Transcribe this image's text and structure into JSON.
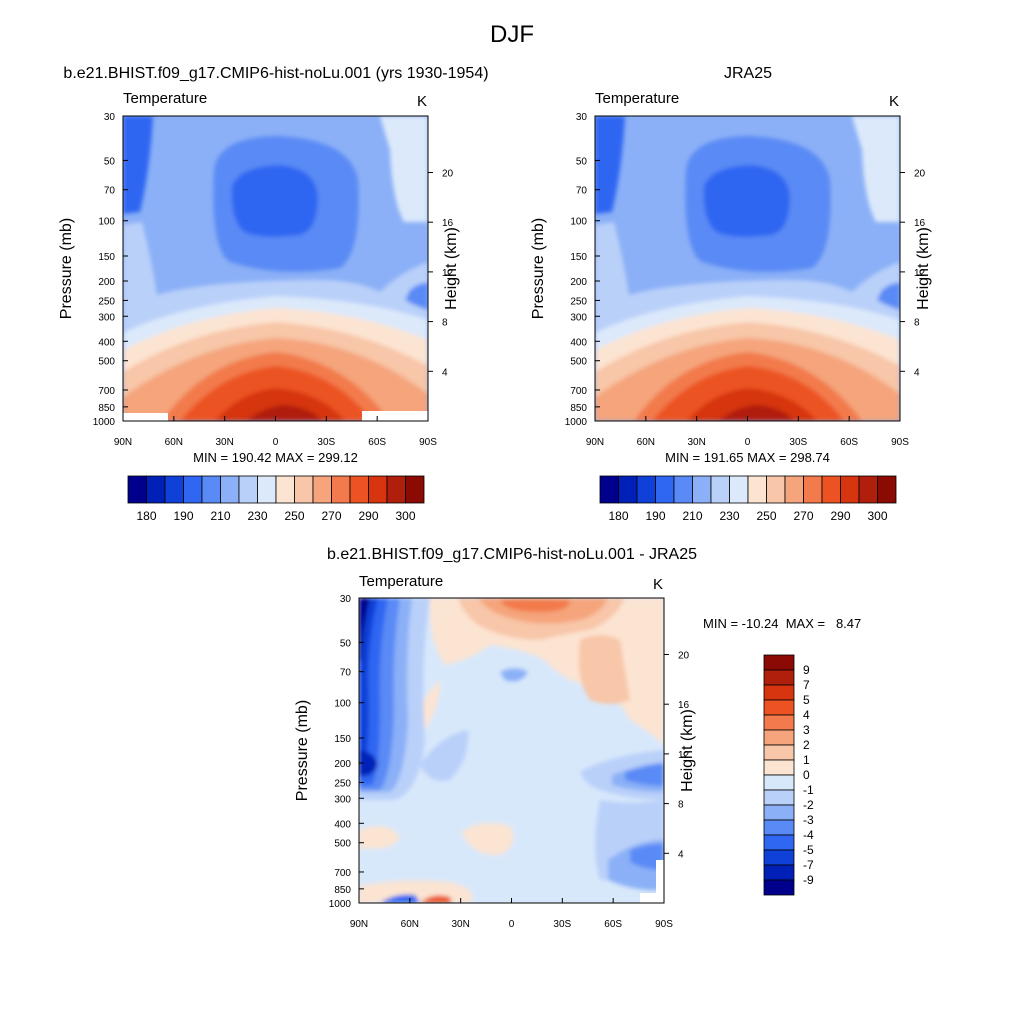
{
  "page_title": "DJF",
  "colors": {
    "abs_palette": [
      "#00008c",
      "#0020b8",
      "#0f40d8",
      "#2f66f2",
      "#5a8af5",
      "#8bb0f7",
      "#b9d0f9",
      "#dce9fb",
      "#fce4d2",
      "#f8c6a8",
      "#f5a47c",
      "#f27a4c",
      "#ec5222",
      "#d63510",
      "#b01f0c",
      "#8c0a04"
    ],
    "anom_palette": [
      "#00008c",
      "#0020b8",
      "#0f40d8",
      "#2f66f2",
      "#5a8af5",
      "#8bb0f7",
      "#b9d0f9",
      "#d8e8fb",
      "#fce4d2",
      "#f8c6a8",
      "#f5a47c",
      "#f27a4c",
      "#ec5222",
      "#d63510",
      "#b01f0c",
      "#8c0a04"
    ]
  },
  "panels": {
    "model": {
      "title": "b.e21.BHIST.f09_g17.CMIP6-hist-noLu.001 (yrs 1930-1954)",
      "left_string": "Temperature",
      "right_string": "K",
      "stats": "MIN = 190.42  MAX = 299.12"
    },
    "obs": {
      "title": "JRA25",
      "left_string": "Temperature",
      "right_string": "K",
      "stats": "MIN = 191.65  MAX = 298.74"
    },
    "diff": {
      "title": "b.e21.BHIST.f09_g17.CMIP6-hist-noLu.001 - JRA25",
      "left_string": "Temperature",
      "right_string": "K",
      "stats": "MIN = -10.24  MAX =   8.47"
    }
  },
  "axes": {
    "ylabel": "Pressure (mb)",
    "ylabel_right": "Height (km)",
    "pressure_ticks": [
      "30",
      "50",
      "70",
      "100",
      "150",
      "200",
      "250",
      "300",
      "400",
      "500",
      "700",
      "850",
      "1000"
    ],
    "height_ticks": [
      "20",
      "16",
      "12",
      "8",
      "4"
    ],
    "lat_ticks": [
      "90N",
      "60N",
      "30N",
      "0",
      "30S",
      "60S",
      "90S"
    ]
  },
  "chart_data": [
    {
      "type": "heatmap",
      "title": "b.e21.BHIST.f09_g17.CMIP6-hist-noLu.001 (yrs 1930-1954)",
      "variable": "Temperature",
      "units": "K",
      "ylabel": "Pressure (mb)",
      "ylabel_right": "Height (km)",
      "x_range": [
        "90N",
        "90S"
      ],
      "y_range": [
        30,
        1000
      ],
      "y_scale": "log",
      "levels": [
        180,
        185,
        190,
        200,
        210,
        220,
        230,
        240,
        250,
        260,
        270,
        280,
        285,
        290,
        295,
        300
      ],
      "colorbar_labels": [
        "180",
        "190",
        "210",
        "230",
        "250",
        "270",
        "290",
        "300"
      ],
      "min": 190.42,
      "max": 299.12
    },
    {
      "type": "heatmap",
      "title": "JRA25",
      "variable": "Temperature",
      "units": "K",
      "ylabel": "Pressure (mb)",
      "ylabel_right": "Height (km)",
      "x_range": [
        "90N",
        "90S"
      ],
      "y_range": [
        30,
        1000
      ],
      "y_scale": "log",
      "levels": [
        180,
        185,
        190,
        200,
        210,
        220,
        230,
        240,
        250,
        260,
        270,
        280,
        285,
        290,
        295,
        300
      ],
      "colorbar_labels": [
        "180",
        "190",
        "210",
        "230",
        "250",
        "270",
        "290",
        "300"
      ],
      "min": 191.65,
      "max": 298.74
    },
    {
      "type": "heatmap",
      "title": "b.e21.BHIST.f09_g17.CMIP6-hist-noLu.001 - JRA25",
      "variable": "Temperature",
      "units": "K",
      "ylabel": "Pressure (mb)",
      "ylabel_right": "Height (km)",
      "x_range": [
        "90N",
        "90S"
      ],
      "y_range": [
        30,
        1000
      ],
      "y_scale": "log",
      "levels": [
        -9,
        -7,
        -5,
        -4,
        -3,
        -2,
        -1,
        0,
        1,
        2,
        3,
        4,
        5,
        7,
        9
      ],
      "colorbar_labels": [
        "9",
        "7",
        "5",
        "4",
        "3",
        "2",
        "1",
        "0",
        "-1",
        "-2",
        "-3",
        "-4",
        "-5",
        "-7",
        "-9"
      ],
      "min": -10.24,
      "max": 8.47
    }
  ]
}
